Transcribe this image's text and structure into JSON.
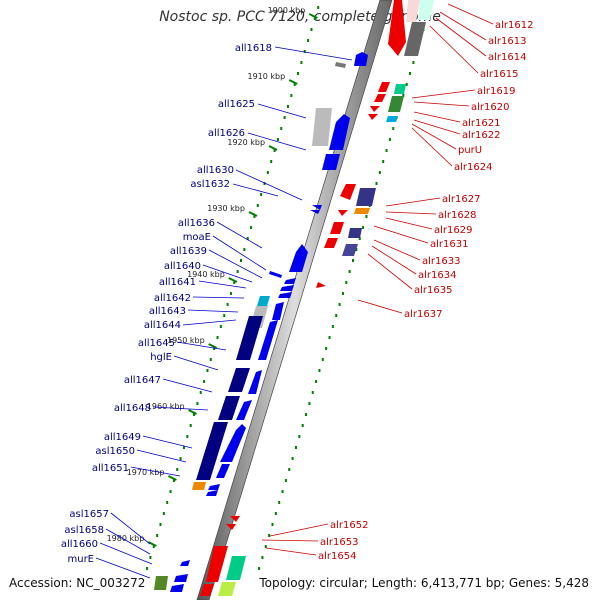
{
  "title": "Nostoc sp. PCC 7120, complete genome",
  "footer": {
    "accession": "Accession: NC_003272",
    "summary": "Topology: circular; Length: 6,413,771 bp; Genes: 5,428"
  },
  "ticks": [
    {
      "label": "1900 kbp",
      "pos": 1900
    },
    {
      "label": "1910 kbp",
      "pos": 1910
    },
    {
      "label": "1920 kbp",
      "pos": 1920
    },
    {
      "label": "1930 kbp",
      "pos": 1930
    },
    {
      "label": "1940 kbp",
      "pos": 1940
    },
    {
      "label": "1950 kbp",
      "pos": 1950
    },
    {
      "label": "1960 kbp",
      "pos": 1960
    },
    {
      "label": "1970 kbp",
      "pos": 1970
    },
    {
      "label": "1980 kbp",
      "pos": 1980
    }
  ],
  "left_genes": [
    "all1618",
    "all1625",
    "all1626",
    "all1630",
    "asl1632",
    "all1636",
    "moaE",
    "all1639",
    "all1640",
    "all1641",
    "all1642",
    "all1643",
    "all1644",
    "all1645",
    "hglE",
    "all1647",
    "all1648",
    "all1649",
    "asl1650",
    "all1651",
    "asl1657",
    "asl1658",
    "all1660",
    "murE"
  ],
  "right_genes": [
    "alr1612",
    "alr1613",
    "alr1614",
    "alr1615",
    "alr1619",
    "alr1620",
    "alr1621",
    "alr1622",
    "purU",
    "alr1624",
    "alr1627",
    "alr1628",
    "alr1629",
    "alr1631",
    "alr1633",
    "alr1634",
    "alr1635",
    "alr1637",
    "alr1652",
    "alr1653",
    "alr1654"
  ],
  "colors": {
    "forward": "#ff0000",
    "reverse": "#0000ff",
    "dark_reverse": "#000080",
    "backbone": "#888888",
    "tick": "#008000"
  }
}
